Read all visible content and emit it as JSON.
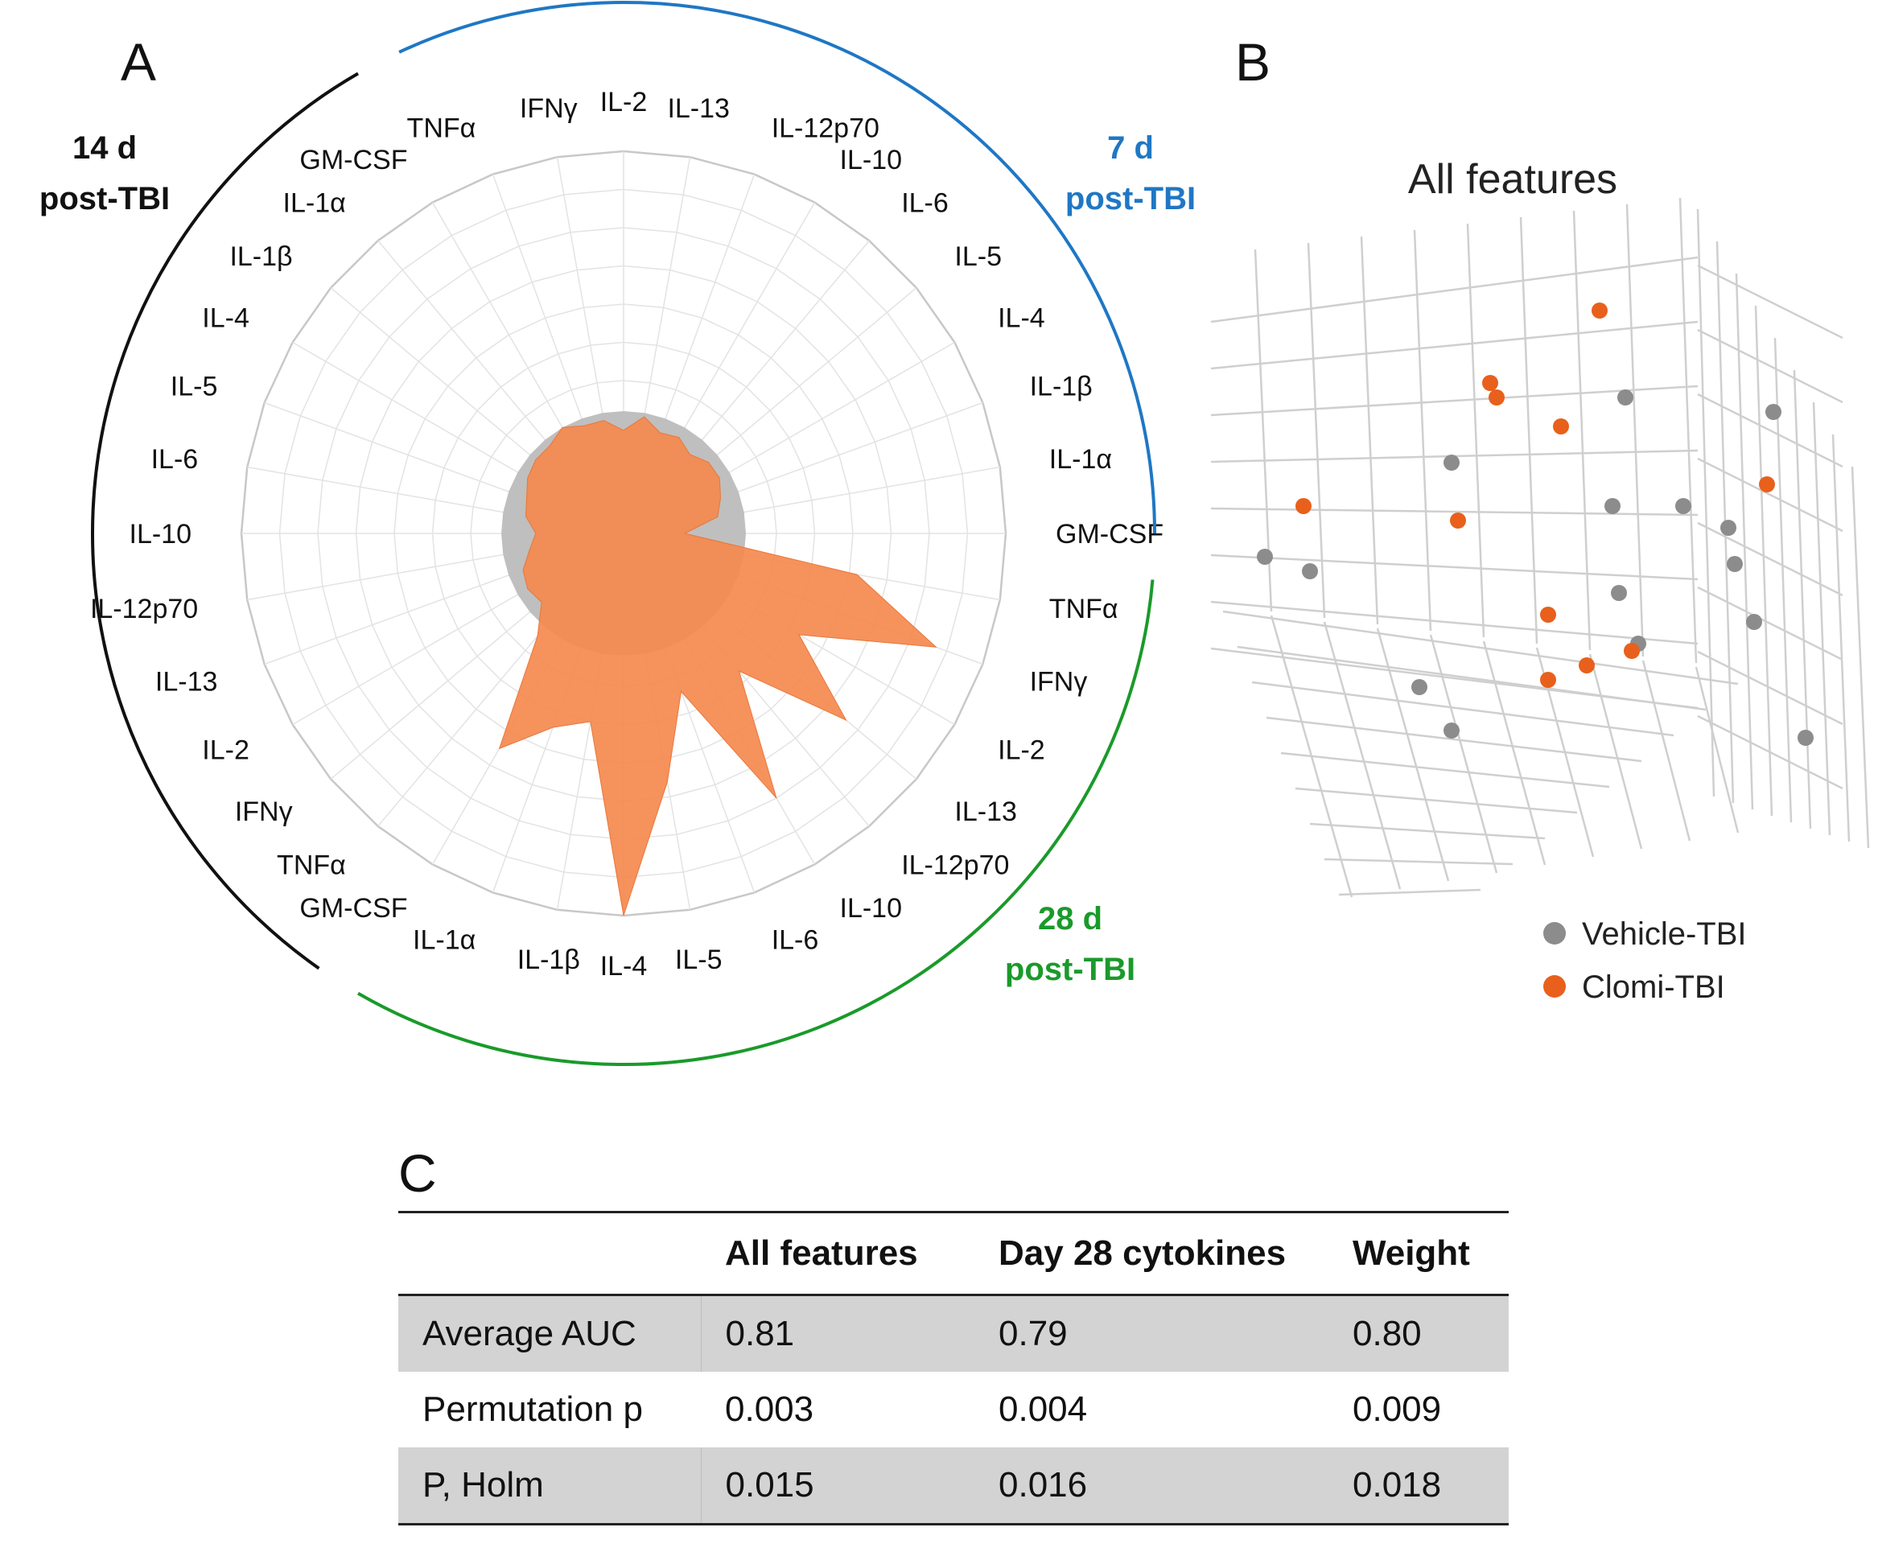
{
  "panels": {
    "a": "A",
    "b": "B",
    "c": "C"
  },
  "colors": {
    "day7": "#1f77c4",
    "day14": "#111111",
    "day28": "#1a9a2a",
    "vehicle": "#8c8c8c",
    "clomi": "#e8601c",
    "radar_fill": "#f5894e",
    "radar_base": "#bfbfbf"
  },
  "periods": {
    "day7": {
      "l1": "7 d",
      "l2": "post-TBI"
    },
    "day14": {
      "l1": "14 d",
      "l2": "post-TBI"
    },
    "day28": {
      "l1": "28 d",
      "l2": "post-TBI"
    }
  },
  "chart_data": [
    {
      "type": "radar",
      "panel": "A",
      "note": "values in relative units (max ring = 1.0)",
      "rmax": 1.0,
      "spokes": [
        {
          "label": "IL-2",
          "group": "7d",
          "vehicle": 0.32,
          "clomi": 0.27
        },
        {
          "label": "IL-13",
          "group": "7d",
          "vehicle": 0.32,
          "clomi": 0.31
        },
        {
          "label": "IL-12p70",
          "group": "7d",
          "vehicle": 0.32,
          "clomi": 0.28
        },
        {
          "label": "IL-10",
          "group": "7d",
          "vehicle": 0.32,
          "clomi": 0.29
        },
        {
          "label": "IL-6",
          "group": "7d",
          "vehicle": 0.32,
          "clomi": 0.27
        },
        {
          "label": "IL-5",
          "group": "7d",
          "vehicle": 0.32,
          "clomi": 0.29
        },
        {
          "label": "IL-4",
          "group": "7d",
          "vehicle": 0.32,
          "clomi": 0.29
        },
        {
          "label": "IL-1β",
          "group": "7d",
          "vehicle": 0.32,
          "clomi": 0.27
        },
        {
          "label": "IL-1α",
          "group": "7d",
          "vehicle": 0.32,
          "clomi": 0.25
        },
        {
          "label": "GM-CSF",
          "group": "7d",
          "vehicle": 0.32,
          "clomi": 0.16
        },
        {
          "label": "TNFα",
          "group": "28d",
          "vehicle": 0.32,
          "clomi": 0.62
        },
        {
          "label": "IFNγ",
          "group": "28d",
          "vehicle": 0.32,
          "clomi": 0.87
        },
        {
          "label": "IL-2",
          "group": "28d",
          "vehicle": 0.32,
          "clomi": 0.53
        },
        {
          "label": "IL-13",
          "group": "28d",
          "vehicle": 0.32,
          "clomi": 0.76
        },
        {
          "label": "IL-12p70",
          "group": "28d",
          "vehicle": 0.32,
          "clomi": 0.47
        },
        {
          "label": "IL-10",
          "group": "28d",
          "vehicle": 0.32,
          "clomi": 0.8
        },
        {
          "label": "IL-6",
          "group": "28d",
          "vehicle": 0.32,
          "clomi": 0.44
        },
        {
          "label": "IL-5",
          "group": "28d",
          "vehicle": 0.32,
          "clomi": 0.66
        },
        {
          "label": "IL-4",
          "group": "28d",
          "vehicle": 0.32,
          "clomi": 1.0
        },
        {
          "label": "IL-1β",
          "group": "28d",
          "vehicle": 0.32,
          "clomi": 0.5
        },
        {
          "label": "IL-1α",
          "group": "28d",
          "vehicle": 0.32,
          "clomi": 0.54
        },
        {
          "label": "GM-CSF",
          "group": "28d",
          "vehicle": 0.32,
          "clomi": 0.65
        },
        {
          "label": "TNFα",
          "group": "14d",
          "vehicle": 0.32,
          "clomi": 0.35
        },
        {
          "label": "IFNγ",
          "group": "14d",
          "vehicle": 0.32,
          "clomi": 0.28
        },
        {
          "label": "IL-2",
          "group": "14d",
          "vehicle": 0.32,
          "clomi": 0.29
        },
        {
          "label": "IL-13",
          "group": "14d",
          "vehicle": 0.32,
          "clomi": 0.28
        },
        {
          "label": "IL-12p70",
          "group": "14d",
          "vehicle": 0.32,
          "clomi": 0.25
        },
        {
          "label": "IL-10",
          "group": "14d",
          "vehicle": 0.32,
          "clomi": 0.23
        },
        {
          "label": "IL-6",
          "group": "14d",
          "vehicle": 0.32,
          "clomi": 0.26
        },
        {
          "label": "IL-5",
          "group": "14d",
          "vehicle": 0.32,
          "clomi": 0.27
        },
        {
          "label": "IL-4",
          "group": "14d",
          "vehicle": 0.32,
          "clomi": 0.29
        },
        {
          "label": "IL-1β",
          "group": "14d",
          "vehicle": 0.32,
          "clomi": 0.3
        },
        {
          "label": "IL-1α",
          "group": "14d",
          "vehicle": 0.32,
          "clomi": 0.3
        },
        {
          "label": "GM-CSF",
          "group": "14d",
          "vehicle": 0.32,
          "clomi": 0.32
        },
        {
          "label": "TNFα",
          "group": "14d",
          "vehicle": 0.32,
          "clomi": 0.3
        },
        {
          "label": "IFNγ",
          "group": "14d",
          "vehicle": 0.32,
          "clomi": 0.3
        }
      ]
    },
    {
      "type": "scatter",
      "panel": "B",
      "title": "All features",
      "projection": "3d",
      "axis_units": "arbitrary projected units, 0-100 horizontal, 0-100 vertical",
      "legend": [
        {
          "name": "Vehicle-TBI",
          "color": "#8c8c8c"
        },
        {
          "name": "Clomi-TBI",
          "color": "#e8601c"
        }
      ],
      "series": [
        {
          "name": "Vehicle-TBI",
          "points": [
            [
              65,
              26
            ],
            [
              88,
              28
            ],
            [
              38,
              35
            ],
            [
              63,
              41
            ],
            [
              74,
              41
            ],
            [
              81,
              44
            ],
            [
              9,
              48
            ],
            [
              82,
              49
            ],
            [
              16,
              50
            ],
            [
              64,
              53
            ],
            [
              85,
              57
            ],
            [
              67,
              60
            ],
            [
              33,
              66
            ],
            [
              38,
              72
            ],
            [
              93,
              73
            ]
          ]
        },
        {
          "name": "Clomi-TBI",
          "points": [
            [
              61,
              14
            ],
            [
              44,
              24
            ],
            [
              45,
              26
            ],
            [
              55,
              30
            ],
            [
              87,
              38
            ],
            [
              15,
              41
            ],
            [
              39,
              43
            ],
            [
              53,
              56
            ],
            [
              66,
              61
            ],
            [
              59,
              63
            ],
            [
              53,
              65
            ]
          ]
        }
      ]
    },
    {
      "type": "table",
      "panel": "C",
      "columns": [
        "",
        "All features",
        "Day 28 cytokines",
        "Weight"
      ],
      "rows": [
        [
          "Average AUC",
          "0.81",
          "0.79",
          "0.80"
        ],
        [
          "Permutation p",
          "0.003",
          "0.004",
          "0.009"
        ],
        [
          "P, Holm",
          "0.015",
          "0.016",
          "0.018"
        ]
      ]
    }
  ]
}
